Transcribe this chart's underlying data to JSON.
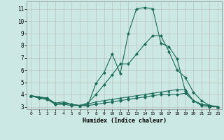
{
  "title": "",
  "xlabel": "Humidex (Indice chaleur)",
  "bg_color": "#cce8e4",
  "grid_color": "#b8b8b8",
  "line_color": "#1a6b5a",
  "xlim": [
    -0.5,
    23.5
  ],
  "ylim": [
    2.8,
    11.6
  ],
  "yticks": [
    3,
    4,
    5,
    6,
    7,
    8,
    9,
    10,
    11
  ],
  "xticks": [
    0,
    1,
    2,
    3,
    4,
    5,
    6,
    7,
    8,
    9,
    10,
    11,
    12,
    13,
    14,
    15,
    16,
    17,
    18,
    19,
    20,
    21,
    22,
    23
  ],
  "series": [
    {
      "x": [
        0,
        1,
        2,
        3,
        4,
        5,
        6,
        7,
        8,
        9,
        10,
        11,
        12,
        13,
        14,
        15,
        16,
        17,
        18,
        19,
        20,
        21,
        22,
        23
      ],
      "y": [
        3.9,
        3.7,
        3.6,
        3.2,
        3.3,
        3.2,
        3.1,
        3.1,
        4.9,
        5.8,
        7.3,
        5.7,
        9.0,
        11.0,
        11.1,
        11.0,
        8.2,
        7.9,
        6.9,
        4.3,
        3.5,
        3.1,
        3.0,
        3.0
      ],
      "marker": "D",
      "markersize": 2.0
    },
    {
      "x": [
        0,
        1,
        2,
        3,
        4,
        5,
        6,
        7,
        8,
        9,
        10,
        11,
        12,
        13,
        14,
        15,
        16,
        17,
        18,
        19,
        20,
        21,
        22,
        23
      ],
      "y": [
        3.9,
        3.7,
        3.7,
        3.2,
        3.3,
        3.2,
        3.1,
        3.3,
        4.0,
        4.8,
        5.6,
        6.5,
        6.5,
        7.3,
        8.1,
        8.8,
        8.8,
        7.5,
        6.0,
        5.4,
        4.2,
        3.5,
        3.1,
        3.0
      ],
      "marker": "D",
      "markersize": 2.0
    },
    {
      "x": [
        0,
        1,
        2,
        3,
        4,
        5,
        6,
        7,
        8,
        9,
        10,
        11,
        12,
        13,
        14,
        15,
        16,
        17,
        18,
        19,
        20,
        21,
        22,
        23
      ],
      "y": [
        3.9,
        3.8,
        3.7,
        3.2,
        3.2,
        3.1,
        3.1,
        3.1,
        3.2,
        3.3,
        3.4,
        3.5,
        3.6,
        3.7,
        3.8,
        3.9,
        4.0,
        4.0,
        4.0,
        4.1,
        3.5,
        3.2,
        3.1,
        3.0
      ],
      "marker": "D",
      "markersize": 2.0
    },
    {
      "x": [
        0,
        1,
        2,
        3,
        4,
        5,
        6,
        7,
        8,
        9,
        10,
        11,
        12,
        13,
        14,
        15,
        16,
        17,
        18,
        19,
        20,
        21,
        22,
        23
      ],
      "y": [
        3.9,
        3.8,
        3.7,
        3.3,
        3.4,
        3.2,
        3.1,
        3.2,
        3.4,
        3.5,
        3.6,
        3.7,
        3.8,
        3.9,
        4.0,
        4.1,
        4.2,
        4.3,
        4.4,
        4.4,
        3.5,
        3.2,
        3.1,
        3.0
      ],
      "marker": "^",
      "markersize": 2.5
    }
  ]
}
